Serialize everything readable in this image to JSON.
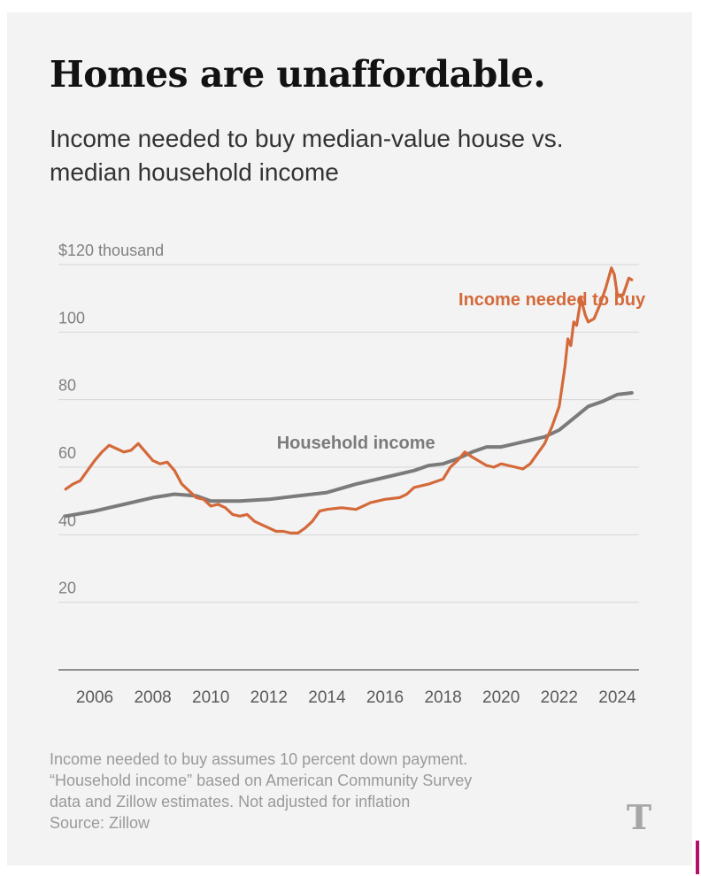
{
  "title": "Homes are unaffordable.",
  "subtitle": "Income needed to buy median-value house vs. median household income",
  "notes": [
    "Income needed to buy assumes 10 percent down payment.",
    "“Household income” based on American Community Survey",
    "data and Zillow estimates. Not adjusted for inflation",
    "Source: Zillow"
  ],
  "logo": {
    "glyph": "T",
    "icon": "new-york-times-logo-icon"
  },
  "colors": {
    "orange": "#d4693a",
    "gray": "#7b7b7b",
    "grid": "#d6d6d6",
    "tick": "#808080"
  },
  "chart_data": {
    "type": "line",
    "title": "Homes are unaffordable.",
    "subtitle": "Income needed to buy median-value house vs. median household income",
    "ylim": [
      0,
      120
    ],
    "xlim": [
      2004.75,
      2024.75
    ],
    "y_ticks": [
      {
        "value": 120,
        "label": "$120 thousand"
      },
      {
        "value": 100,
        "label": "100"
      },
      {
        "value": 80,
        "label": "80"
      },
      {
        "value": 60,
        "label": "60"
      },
      {
        "value": 40,
        "label": "40"
      },
      {
        "value": 20,
        "label": "20"
      }
    ],
    "x_ticks": [
      {
        "value": 2006,
        "label": "2006"
      },
      {
        "value": 2008,
        "label": "2008"
      },
      {
        "value": 2010,
        "label": "2010"
      },
      {
        "value": 2012,
        "label": "2012"
      },
      {
        "value": 2014,
        "label": "2014"
      },
      {
        "value": 2016,
        "label": "2016"
      },
      {
        "value": 2018,
        "label": "2018"
      },
      {
        "value": 2020,
        "label": "2020"
      },
      {
        "value": 2022,
        "label": "2022"
      },
      {
        "value": 2024,
        "label": "2024"
      }
    ],
    "grid": true,
    "series": [
      {
        "name": "Income needed to buy",
        "color": "#d4693a",
        "points": [
          [
            2005.0,
            53.5
          ],
          [
            2005.25,
            55
          ],
          [
            2005.5,
            56
          ],
          [
            2005.75,
            59
          ],
          [
            2006.0,
            62
          ],
          [
            2006.25,
            64.5
          ],
          [
            2006.5,
            66.5
          ],
          [
            2006.75,
            65.5
          ],
          [
            2007.0,
            64.5
          ],
          [
            2007.25,
            65
          ],
          [
            2007.5,
            67
          ],
          [
            2007.75,
            64.5
          ],
          [
            2008.0,
            62
          ],
          [
            2008.25,
            61
          ],
          [
            2008.5,
            61.5
          ],
          [
            2008.75,
            59
          ],
          [
            2009.0,
            55
          ],
          [
            2009.25,
            53
          ],
          [
            2009.5,
            51
          ],
          [
            2009.75,
            50.5
          ],
          [
            2010.0,
            48.5
          ],
          [
            2010.25,
            49
          ],
          [
            2010.5,
            48
          ],
          [
            2010.75,
            46
          ],
          [
            2011.0,
            45.5
          ],
          [
            2011.25,
            46
          ],
          [
            2011.5,
            44
          ],
          [
            2011.75,
            43
          ],
          [
            2012.0,
            42
          ],
          [
            2012.25,
            41
          ],
          [
            2012.5,
            41
          ],
          [
            2012.75,
            40.5
          ],
          [
            2013.0,
            40.5
          ],
          [
            2013.25,
            42
          ],
          [
            2013.5,
            44
          ],
          [
            2013.75,
            47
          ],
          [
            2014.0,
            47.5
          ],
          [
            2014.5,
            48
          ],
          [
            2015.0,
            47.5
          ],
          [
            2015.25,
            48.5
          ],
          [
            2015.5,
            49.5
          ],
          [
            2016.0,
            50.5
          ],
          [
            2016.5,
            51
          ],
          [
            2016.75,
            52
          ],
          [
            2017.0,
            54
          ],
          [
            2017.5,
            55
          ],
          [
            2018.0,
            56.5
          ],
          [
            2018.25,
            60
          ],
          [
            2018.5,
            62
          ],
          [
            2018.75,
            64.5
          ],
          [
            2019.0,
            63
          ],
          [
            2019.5,
            60.5
          ],
          [
            2019.75,
            60
          ],
          [
            2020.0,
            61
          ],
          [
            2020.5,
            60
          ],
          [
            2020.75,
            59.5
          ],
          [
            2021.0,
            61
          ],
          [
            2021.25,
            64
          ],
          [
            2021.5,
            67
          ],
          [
            2021.75,
            72
          ],
          [
            2022.0,
            78
          ],
          [
            2022.2,
            90
          ],
          [
            2022.3,
            98
          ],
          [
            2022.4,
            96
          ],
          [
            2022.5,
            103
          ],
          [
            2022.6,
            102
          ],
          [
            2022.75,
            110
          ],
          [
            2022.9,
            105
          ],
          [
            2023.0,
            103
          ],
          [
            2023.2,
            104
          ],
          [
            2023.4,
            108
          ],
          [
            2023.6,
            113
          ],
          [
            2023.8,
            119
          ],
          [
            2023.9,
            117
          ],
          [
            2024.0,
            111
          ],
          [
            2024.2,
            111
          ],
          [
            2024.4,
            116
          ],
          [
            2024.5,
            115.5
          ]
        ]
      },
      {
        "name": "Household income",
        "color": "#7b7b7b",
        "points": [
          [
            2005.0,
            45.5
          ],
          [
            2006.0,
            47
          ],
          [
            2007.0,
            49
          ],
          [
            2008.0,
            51
          ],
          [
            2008.75,
            52
          ],
          [
            2009.5,
            51.5
          ],
          [
            2010.0,
            50
          ],
          [
            2011.0,
            50
          ],
          [
            2012.0,
            50.5
          ],
          [
            2013.0,
            51.5
          ],
          [
            2014.0,
            52.5
          ],
          [
            2015.0,
            55
          ],
          [
            2016.0,
            57
          ],
          [
            2017.0,
            59
          ],
          [
            2017.5,
            60.5
          ],
          [
            2018.0,
            61
          ],
          [
            2018.5,
            62.5
          ],
          [
            2019.0,
            64.5
          ],
          [
            2019.5,
            66
          ],
          [
            2020.0,
            66
          ],
          [
            2020.5,
            67
          ],
          [
            2021.0,
            68
          ],
          [
            2021.5,
            69
          ],
          [
            2022.0,
            71
          ],
          [
            2022.5,
            74.5
          ],
          [
            2023.0,
            78
          ],
          [
            2023.5,
            79.5
          ],
          [
            2024.0,
            81.5
          ],
          [
            2024.5,
            82
          ]
        ]
      }
    ],
    "annotations": [
      {
        "text": "Income needed to buy",
        "series": "Income needed to buy",
        "x": 2021.75,
        "y": 108,
        "color": "#d4693a"
      },
      {
        "text": "Household income",
        "series": "Household income",
        "x": 2015.0,
        "y": 65.5,
        "color": "#7b7b7b"
      }
    ]
  }
}
